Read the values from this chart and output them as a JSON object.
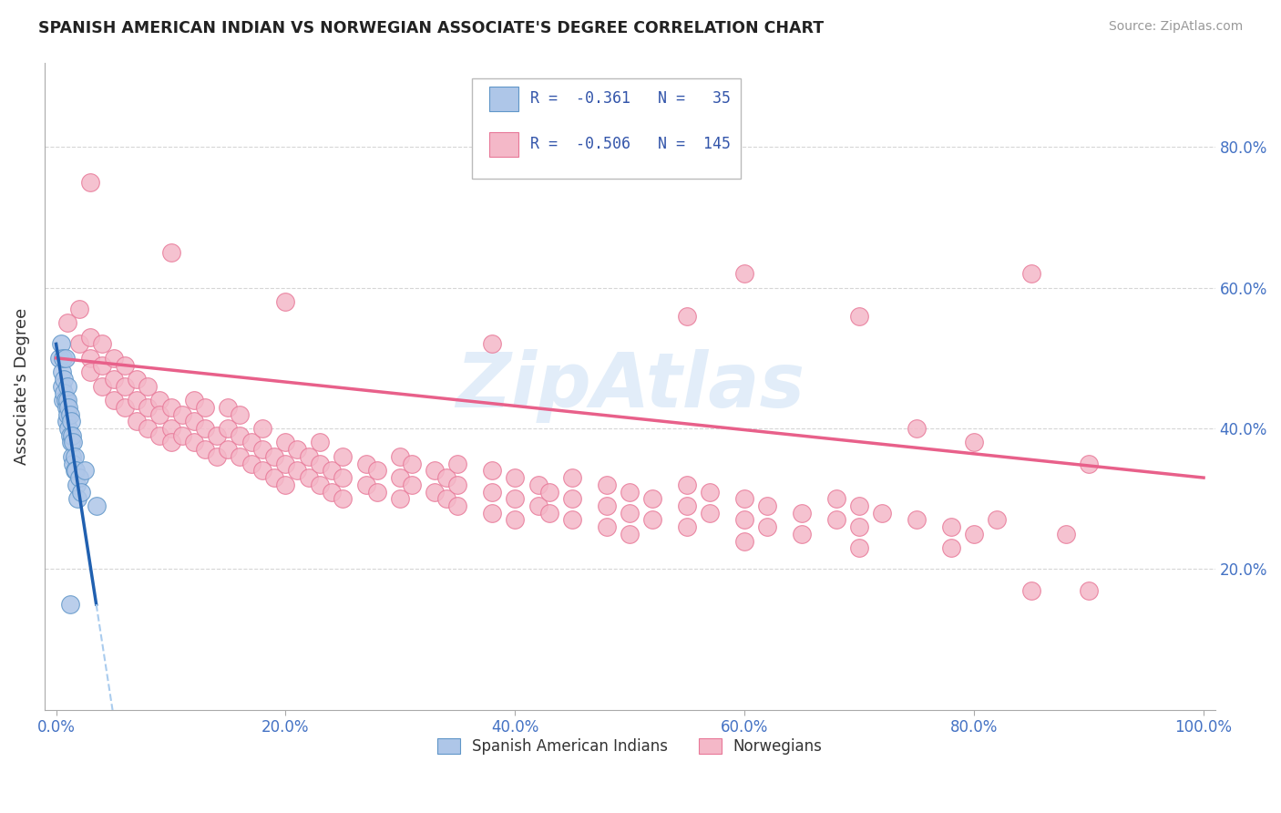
{
  "title": "SPANISH AMERICAN INDIAN VS NORWEGIAN ASSOCIATE'S DEGREE CORRELATION CHART",
  "source": "Source: ZipAtlas.com",
  "ylabel": "Associate's Degree",
  "watermark": "ZipAtlas",
  "xlim": [
    0.0,
    100.0
  ],
  "ylim": [
    0.0,
    90.0
  ],
  "xtick_vals": [
    0,
    20,
    40,
    60,
    80,
    100
  ],
  "xtick_labels": [
    "0.0%",
    "20.0%",
    "40.0%",
    "60.0%",
    "80.0%",
    "100.0%"
  ],
  "ytick_vals": [
    20,
    40,
    60,
    80
  ],
  "ytick_labels": [
    "20.0%",
    "40.0%",
    "60.0%",
    "80.0%"
  ],
  "legend_labels": [
    "Spanish American Indians",
    "Norwegians"
  ],
  "blue_color": "#aec6e8",
  "pink_color": "#f4b8c8",
  "blue_edge_color": "#6096c8",
  "pink_edge_color": "#e87898",
  "blue_line_color": "#2060b0",
  "pink_line_color": "#e8608a",
  "r_blue": -0.361,
  "n_blue": 35,
  "r_pink": -0.506,
  "n_pink": 145,
  "blue_scatter": [
    [
      0.3,
      50
    ],
    [
      0.4,
      52
    ],
    [
      0.5,
      48
    ],
    [
      0.5,
      46
    ],
    [
      0.6,
      50
    ],
    [
      0.6,
      44
    ],
    [
      0.7,
      47
    ],
    [
      0.7,
      45
    ],
    [
      0.8,
      50
    ],
    [
      0.8,
      44
    ],
    [
      0.9,
      43
    ],
    [
      0.9,
      41
    ],
    [
      1.0,
      46
    ],
    [
      1.0,
      44
    ],
    [
      1.0,
      42
    ],
    [
      1.1,
      43
    ],
    [
      1.1,
      40
    ],
    [
      1.2,
      42
    ],
    [
      1.2,
      39
    ],
    [
      1.3,
      41
    ],
    [
      1.3,
      38
    ],
    [
      1.4,
      39
    ],
    [
      1.4,
      36
    ],
    [
      1.5,
      38
    ],
    [
      1.5,
      35
    ],
    [
      1.6,
      36
    ],
    [
      1.6,
      34
    ],
    [
      1.7,
      34
    ],
    [
      1.8,
      32
    ],
    [
      1.9,
      30
    ],
    [
      2.0,
      33
    ],
    [
      2.2,
      31
    ],
    [
      2.5,
      34
    ],
    [
      3.5,
      29
    ],
    [
      1.2,
      15
    ]
  ],
  "pink_scatter": [
    [
      1,
      55
    ],
    [
      2,
      52
    ],
    [
      2,
      57
    ],
    [
      3,
      53
    ],
    [
      3,
      50
    ],
    [
      3,
      48
    ],
    [
      4,
      52
    ],
    [
      4,
      49
    ],
    [
      4,
      46
    ],
    [
      5,
      50
    ],
    [
      5,
      47
    ],
    [
      5,
      44
    ],
    [
      6,
      49
    ],
    [
      6,
      46
    ],
    [
      6,
      43
    ],
    [
      7,
      47
    ],
    [
      7,
      44
    ],
    [
      7,
      41
    ],
    [
      8,
      46
    ],
    [
      8,
      43
    ],
    [
      8,
      40
    ],
    [
      9,
      44
    ],
    [
      9,
      42
    ],
    [
      9,
      39
    ],
    [
      10,
      43
    ],
    [
      10,
      40
    ],
    [
      10,
      38
    ],
    [
      11,
      42
    ],
    [
      11,
      39
    ],
    [
      12,
      41
    ],
    [
      12,
      44
    ],
    [
      12,
      38
    ],
    [
      13,
      40
    ],
    [
      13,
      43
    ],
    [
      13,
      37
    ],
    [
      14,
      39
    ],
    [
      14,
      36
    ],
    [
      15,
      43
    ],
    [
      15,
      40
    ],
    [
      15,
      37
    ],
    [
      16,
      39
    ],
    [
      16,
      42
    ],
    [
      16,
      36
    ],
    [
      17,
      38
    ],
    [
      17,
      35
    ],
    [
      18,
      37
    ],
    [
      18,
      40
    ],
    [
      18,
      34
    ],
    [
      19,
      36
    ],
    [
      19,
      33
    ],
    [
      20,
      35
    ],
    [
      20,
      38
    ],
    [
      20,
      32
    ],
    [
      21,
      37
    ],
    [
      21,
      34
    ],
    [
      22,
      36
    ],
    [
      22,
      33
    ],
    [
      23,
      35
    ],
    [
      23,
      38
    ],
    [
      23,
      32
    ],
    [
      24,
      34
    ],
    [
      24,
      31
    ],
    [
      25,
      36
    ],
    [
      25,
      33
    ],
    [
      25,
      30
    ],
    [
      27,
      35
    ],
    [
      27,
      32
    ],
    [
      28,
      34
    ],
    [
      28,
      31
    ],
    [
      30,
      33
    ],
    [
      30,
      36
    ],
    [
      30,
      30
    ],
    [
      31,
      32
    ],
    [
      31,
      35
    ],
    [
      33,
      34
    ],
    [
      33,
      31
    ],
    [
      34,
      33
    ],
    [
      34,
      30
    ],
    [
      35,
      32
    ],
    [
      35,
      35
    ],
    [
      35,
      29
    ],
    [
      38,
      31
    ],
    [
      38,
      34
    ],
    [
      38,
      28
    ],
    [
      40,
      30
    ],
    [
      40,
      33
    ],
    [
      40,
      27
    ],
    [
      42,
      32
    ],
    [
      42,
      29
    ],
    [
      43,
      31
    ],
    [
      43,
      28
    ],
    [
      45,
      30
    ],
    [
      45,
      33
    ],
    [
      45,
      27
    ],
    [
      48,
      32
    ],
    [
      48,
      29
    ],
    [
      48,
      26
    ],
    [
      50,
      31
    ],
    [
      50,
      28
    ],
    [
      50,
      25
    ],
    [
      52,
      30
    ],
    [
      52,
      27
    ],
    [
      55,
      29
    ],
    [
      55,
      32
    ],
    [
      55,
      26
    ],
    [
      57,
      28
    ],
    [
      57,
      31
    ],
    [
      60,
      27
    ],
    [
      60,
      30
    ],
    [
      60,
      24
    ],
    [
      62,
      29
    ],
    [
      62,
      26
    ],
    [
      65,
      28
    ],
    [
      65,
      25
    ],
    [
      68,
      27
    ],
    [
      68,
      30
    ],
    [
      70,
      26
    ],
    [
      70,
      29
    ],
    [
      70,
      23
    ],
    [
      72,
      28
    ],
    [
      75,
      40
    ],
    [
      75,
      27
    ],
    [
      78,
      26
    ],
    [
      78,
      23
    ],
    [
      80,
      25
    ],
    [
      80,
      38
    ],
    [
      82,
      27
    ],
    [
      85,
      17
    ],
    [
      88,
      25
    ],
    [
      90,
      35
    ],
    [
      3,
      75
    ],
    [
      10,
      65
    ],
    [
      20,
      58
    ],
    [
      38,
      52
    ],
    [
      55,
      56
    ],
    [
      60,
      62
    ],
    [
      70,
      56
    ],
    [
      85,
      62
    ],
    [
      90,
      17
    ]
  ]
}
